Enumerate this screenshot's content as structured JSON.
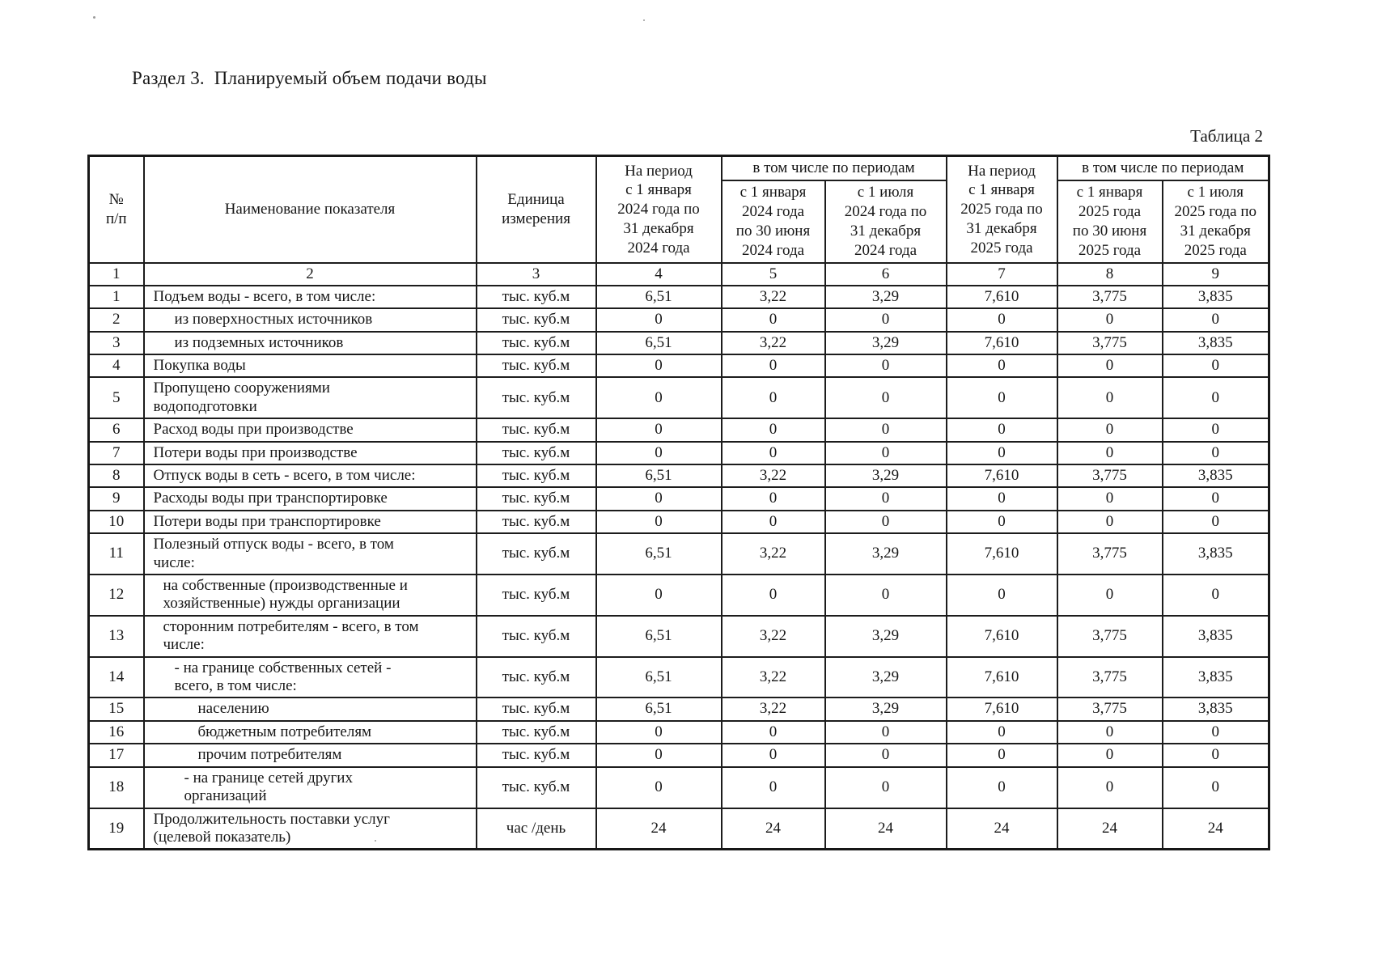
{
  "colors": {
    "ink": "#1a1a1a",
    "paper": "#ffffff"
  },
  "page": {
    "section_title": "Раздел 3.  Планируемый объем подачи воды",
    "table_label": "Таблица 2"
  },
  "table": {
    "header": {
      "num": "№\nп/п",
      "name": "Наименование показателя",
      "unit": "Единица\nизмерения",
      "period_2024": "На период\nс 1 января\n2024 года по\n31 декабря\n2024 года",
      "subperiods_2024": "в том числе по периодам",
      "h1_2024": "с 1 января\n2024 года\nпо 30 июня\n2024 года",
      "h2_2024": "с 1 июля\n2024 года по\n31 декабря\n2024 года",
      "period_2025": "На период\nс 1 января\n2025 года по\n31 декабря\n2025 года",
      "subperiods_2025": "в том числе по периодам",
      "h1_2025": "с 1 января\n2025 года\nпо 30 июня\n2025 года",
      "h2_2025": "с 1 июля\n2025 года по\n31 декабря\n2025 года",
      "column_numbers": [
        "1",
        "2",
        "3",
        "4",
        "5",
        "6",
        "7",
        "8",
        "9"
      ]
    },
    "rows": [
      {
        "num": "1",
        "indent": 0,
        "name": "Подъем воды - всего, в том числе:",
        "unit": "тыс. куб.м",
        "values": [
          "6,51",
          "3,22",
          "3,29",
          "7,610",
          "3,775",
          "3,835"
        ]
      },
      {
        "num": "2",
        "indent": 2,
        "name": "из поверхностных источников",
        "unit": "тыс. куб.м",
        "values": [
          "0",
          "0",
          "0",
          "0",
          "0",
          "0"
        ]
      },
      {
        "num": "3",
        "indent": 2,
        "name": "из подземных источников",
        "unit": "тыс. куб.м",
        "values": [
          "6,51",
          "3,22",
          "3,29",
          "7,610",
          "3,775",
          "3,835"
        ]
      },
      {
        "num": "4",
        "indent": 0,
        "name": "Покупка воды",
        "unit": "тыс. куб.м",
        "values": [
          "0",
          "0",
          "0",
          "0",
          "0",
          "0"
        ]
      },
      {
        "num": "5",
        "indent": 0,
        "name": "Пропущено сооружениями\nводоподготовки",
        "unit": "тыс. куб.м",
        "values": [
          "0",
          "0",
          "0",
          "0",
          "0",
          "0"
        ]
      },
      {
        "num": "6",
        "indent": 0,
        "name": "Расход воды при производстве",
        "unit": "тыс. куб.м",
        "values": [
          "0",
          "0",
          "0",
          "0",
          "0",
          "0"
        ]
      },
      {
        "num": "7",
        "indent": 0,
        "name": "Потери воды при производстве",
        "unit": "тыс. куб.м",
        "values": [
          "0",
          "0",
          "0",
          "0",
          "0",
          "0"
        ]
      },
      {
        "num": "8",
        "indent": 0,
        "name": "Отпуск воды в сеть - всего, в том числе:",
        "unit": "тыс. куб.м",
        "values": [
          "6,51",
          "3,22",
          "3,29",
          "7,610",
          "3,775",
          "3,835"
        ]
      },
      {
        "num": "9",
        "indent": 0,
        "name": "Расходы воды при транспортировке",
        "unit": "тыс. куб.м",
        "values": [
          "0",
          "0",
          "0",
          "0",
          "0",
          "0"
        ]
      },
      {
        "num": "10",
        "indent": 0,
        "name": "Потери воды при транспортировке",
        "unit": "тыс. куб.м",
        "values": [
          "0",
          "0",
          "0",
          "0",
          "0",
          "0"
        ]
      },
      {
        "num": "11",
        "indent": 0,
        "name": "Полезный отпуск воды - всего, в том\nчисле:",
        "unit": "тыс. куб.м",
        "values": [
          "6,51",
          "3,22",
          "3,29",
          "7,610",
          "3,775",
          "3,835"
        ]
      },
      {
        "num": "12",
        "indent": 1,
        "name": "на собственные (производственные и\nхозяйственные) нужды организации",
        "unit": "тыс. куб.м",
        "values": [
          "0",
          "0",
          "0",
          "0",
          "0",
          "0"
        ]
      },
      {
        "num": "13",
        "indent": 1,
        "name": "сторонним потребителям - всего, в том\nчисле:",
        "unit": "тыс. куб.м",
        "values": [
          "6,51",
          "3,22",
          "3,29",
          "7,610",
          "3,775",
          "3,835"
        ]
      },
      {
        "num": "14",
        "indent": 2,
        "name": "- на границе собственных сетей -\nвсего, в том числе:",
        "unit": "тыс. куб.м",
        "values": [
          "6,51",
          "3,22",
          "3,29",
          "7,610",
          "3,775",
          "3,835"
        ]
      },
      {
        "num": "15",
        "indent": 4,
        "name": "населению",
        "unit": "тыс. куб.м",
        "values": [
          "6,51",
          "3,22",
          "3,29",
          "7,610",
          "3,775",
          "3,835"
        ]
      },
      {
        "num": "16",
        "indent": 4,
        "name": "бюджетным потребителям",
        "unit": "тыс. куб.м",
        "values": [
          "0",
          "0",
          "0",
          "0",
          "0",
          "0"
        ]
      },
      {
        "num": "17",
        "indent": 4,
        "name": "прочим потребителям",
        "unit": "тыс. куб.м",
        "values": [
          "0",
          "0",
          "0",
          "0",
          "0",
          "0"
        ]
      },
      {
        "num": "18",
        "indent": 3,
        "name": "- на границе сетей других\nорганизаций",
        "unit": "тыс. куб.м",
        "values": [
          "0",
          "0",
          "0",
          "0",
          "0",
          "0"
        ]
      },
      {
        "num": "19",
        "indent": 0,
        "name": "Продолжительность поставки услуг\n(целевой показатель)",
        "unit": "час /день",
        "values": [
          "24",
          "24",
          "24",
          "24",
          "24",
          "24"
        ]
      }
    ]
  }
}
